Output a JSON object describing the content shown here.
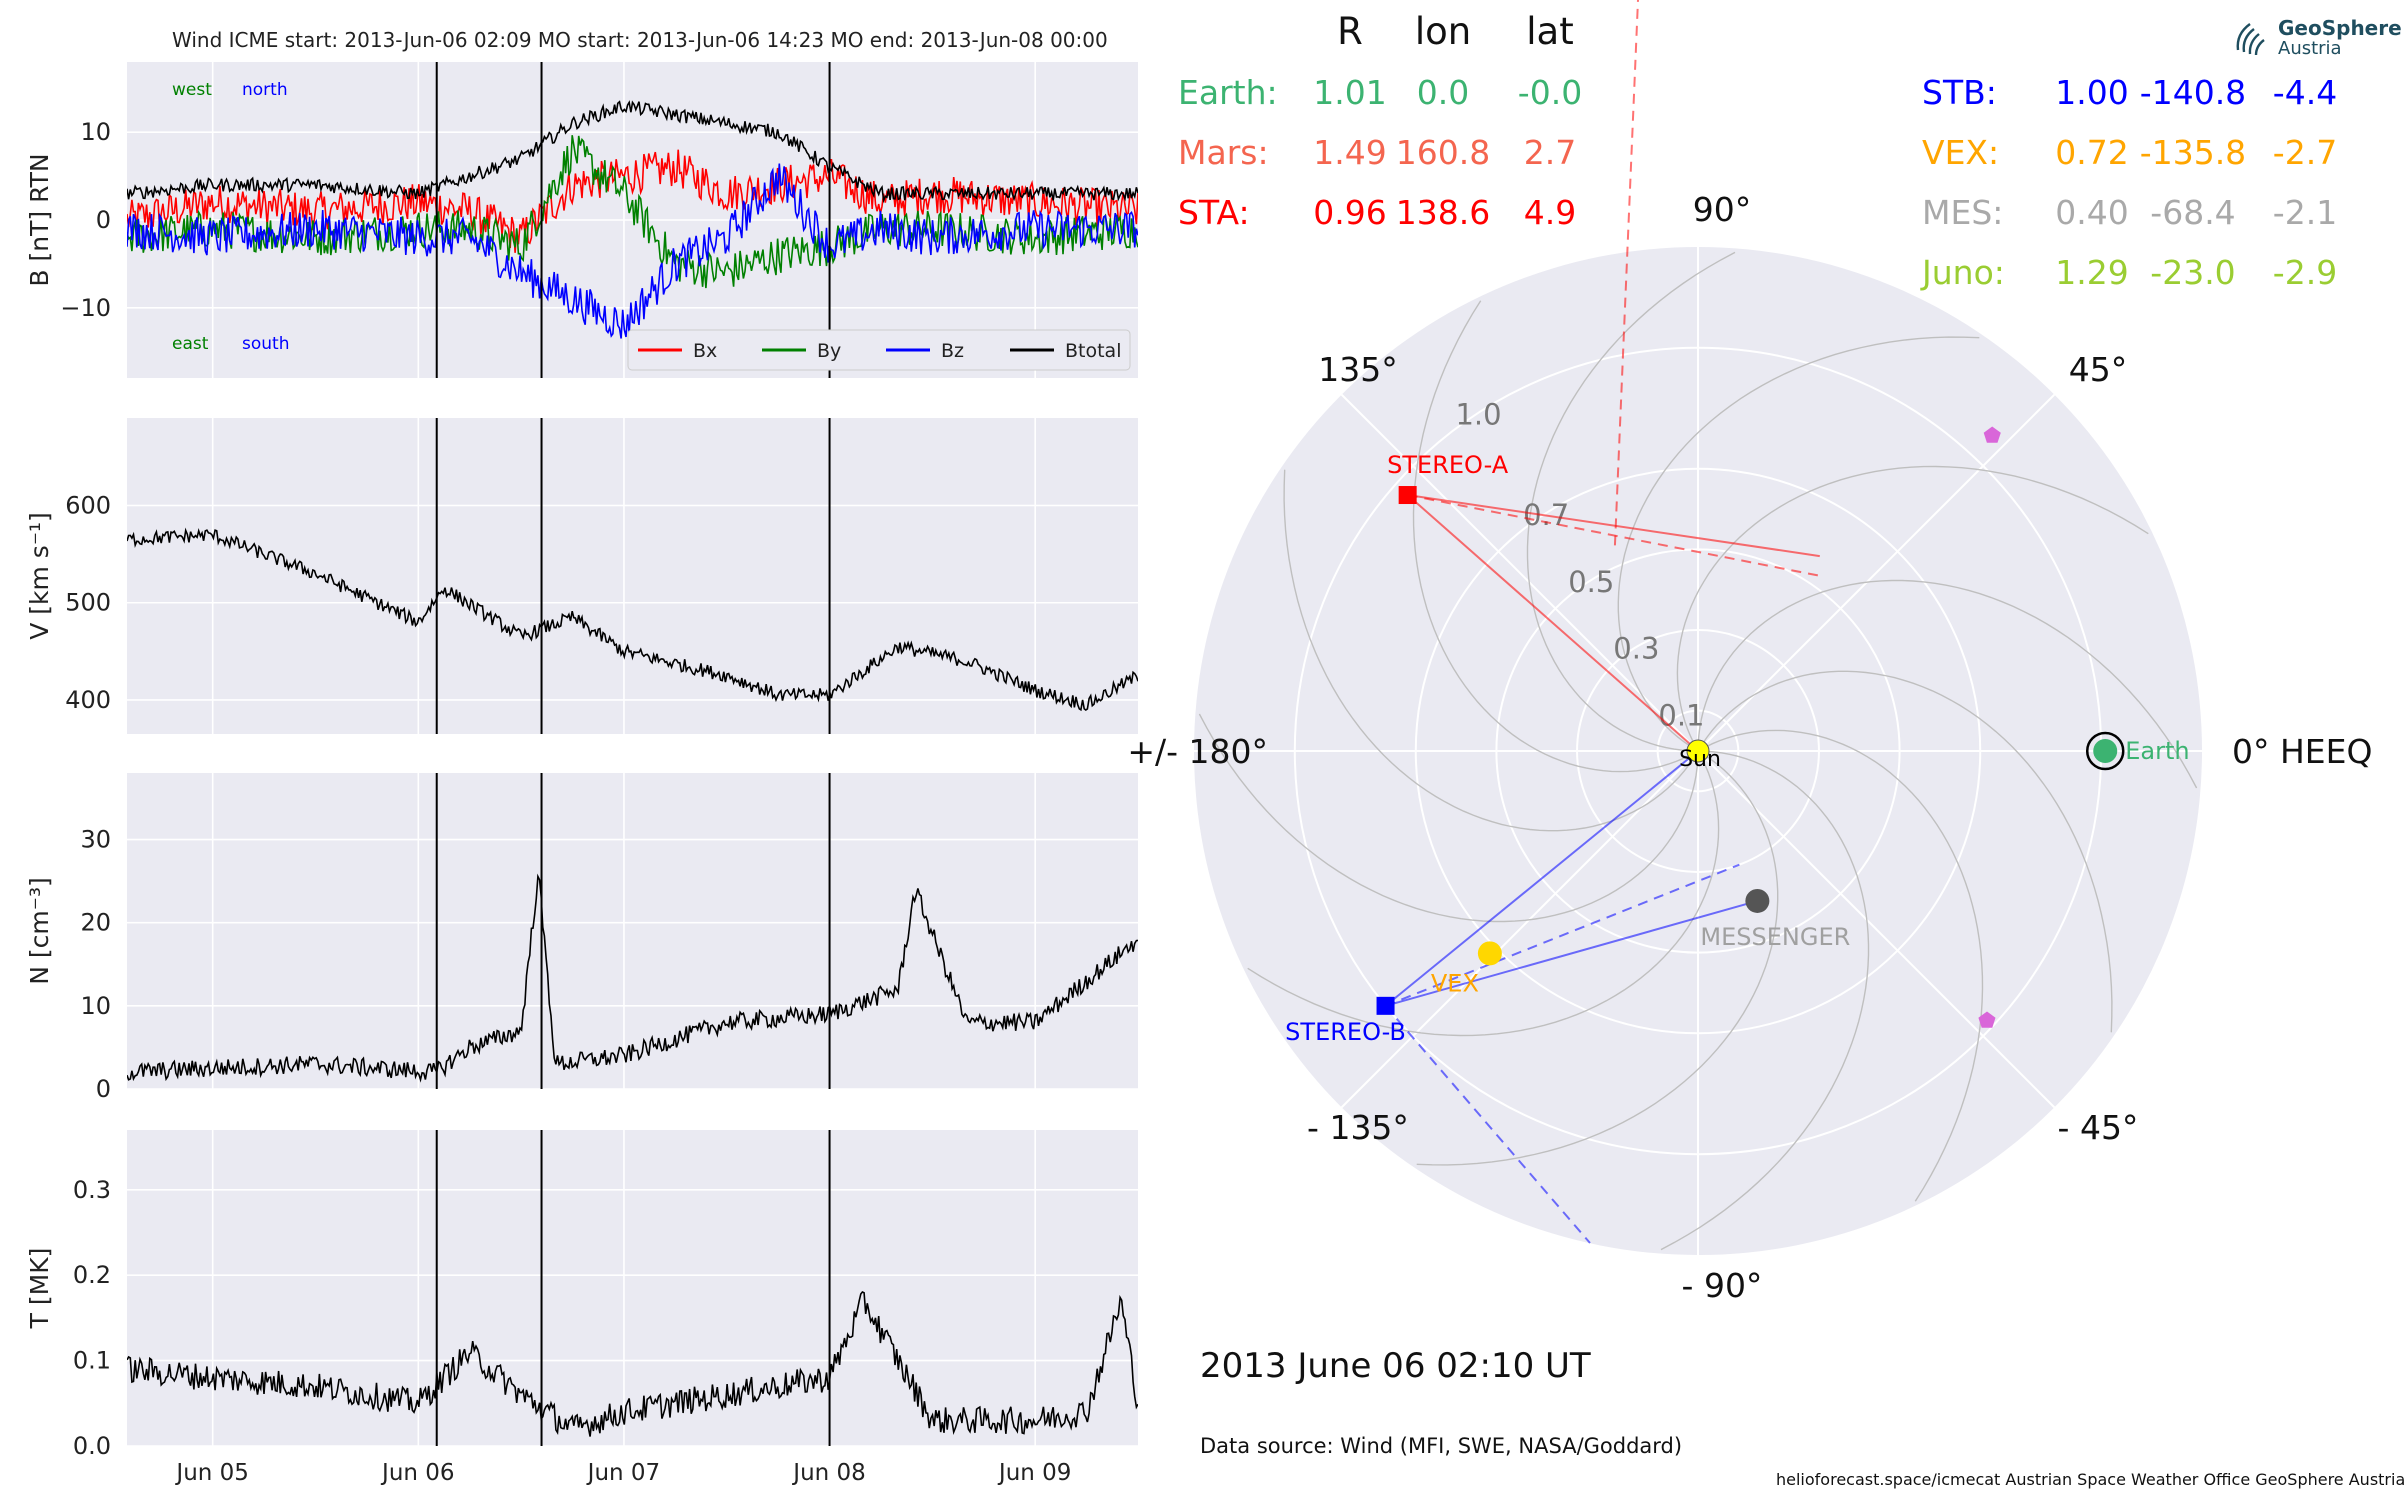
{
  "header": {
    "title": "Wind    ICME start: 2013-Jun-06 02:09   MO start: 2013-Jun-06 14:23   MO end: 2013-Jun-08 00:00"
  },
  "logo": {
    "line1": "GeoSphere",
    "line2": "Austria"
  },
  "footer": {
    "timestamp": "2013 June 06  02:10 UT",
    "data_source": "Data source: Wind (MFI, SWE, NASA/Goddard)",
    "credits": "helioforecast.space/icmecat   Austrian Space Weather Office   GeoSphere Austria"
  },
  "colors": {
    "panel_bg": "#eaeaf2",
    "grid": "#ffffff",
    "bx": "#ff0000",
    "by": "#008000",
    "bz": "#0000ff",
    "btotal": "#000000",
    "earth": "#3cb371",
    "mars": "#f4654f",
    "sta": "#ff0000",
    "stb": "#0000ff",
    "vex": "#ffa500",
    "mes": "#a9a9a9",
    "juno": "#9acd32",
    "sun": "#ffff00",
    "psp": "#d966d9"
  },
  "chart_data": [
    {
      "type": "line",
      "title": "",
      "ylabel": "B [nT] RTN",
      "ylim": [
        -18,
        18
      ],
      "yticks": [
        10,
        0,
        -10
      ],
      "ytick_labels": [
        "10",
        "0",
        "−10"
      ],
      "xlim": [
        "2013-06-04T14:00",
        "2013-06-09T12:00"
      ],
      "xticks": [
        "Jun 05",
        "Jun 06",
        "Jun 07",
        "Jun 08",
        "Jun 09"
      ],
      "xtick_times": [
        "2013-06-05T00:00",
        "2013-06-06T00:00",
        "2013-06-07T00:00",
        "2013-06-08T00:00",
        "2013-06-09T00:00"
      ],
      "event_lines": [
        "2013-06-06T02:09",
        "2013-06-06T14:23",
        "2013-06-08T00:00"
      ],
      "annotations": [
        "west",
        "north",
        "east",
        "south"
      ],
      "legend_position": "lower-right",
      "x_times": [
        "2013-06-04T14:00",
        "2013-06-05T00:00",
        "2013-06-05T12:00",
        "2013-06-06T00:00",
        "2013-06-06T06:00",
        "2013-06-06T12:00",
        "2013-06-06T18:00",
        "2013-06-07T00:00",
        "2013-06-07T06:00",
        "2013-06-07T12:00",
        "2013-06-07T18:00",
        "2013-06-08T00:00",
        "2013-06-08T06:00",
        "2013-06-08T12:00",
        "2013-06-09T00:00",
        "2013-06-09T12:00"
      ],
      "series": [
        {
          "name": "Bx",
          "values": [
            0,
            2,
            1,
            2,
            1,
            -2,
            4,
            5,
            6,
            3,
            4,
            5,
            2,
            3,
            2,
            1
          ]
        },
        {
          "name": "By",
          "values": [
            -2,
            -1,
            -2,
            -1,
            -1,
            -3,
            8,
            3,
            -5,
            -6,
            -4,
            -3,
            -1,
            -1,
            -2,
            -1
          ]
        },
        {
          "name": "Bz",
          "values": [
            -1,
            -2,
            -1,
            -2,
            -2,
            -6,
            -9,
            -12,
            -5,
            -2,
            5,
            -3,
            -1,
            -2,
            -1,
            -1
          ]
        },
        {
          "name": "Btotal",
          "values": [
            3,
            4,
            4,
            3,
            5,
            7,
            11,
            13,
            12,
            11,
            10,
            6,
            3,
            3,
            3,
            3
          ]
        }
      ]
    },
    {
      "type": "line",
      "title": "",
      "ylabel": "V [km s⁻¹]",
      "ylim": [
        365,
        690
      ],
      "yticks": [
        600,
        500,
        400
      ],
      "ytick_labels": [
        "600",
        "500",
        "400"
      ],
      "xlim": [
        "2013-06-04T14:00",
        "2013-06-09T12:00"
      ],
      "xticks": [
        "Jun 05",
        "Jun 06",
        "Jun 07",
        "Jun 08",
        "Jun 09"
      ],
      "xtick_times": [
        "2013-06-05T00:00",
        "2013-06-06T00:00",
        "2013-06-07T00:00",
        "2013-06-08T00:00",
        "2013-06-09T00:00"
      ],
      "event_lines": [
        "2013-06-06T02:09",
        "2013-06-06T14:23",
        "2013-06-08T00:00"
      ],
      "x_times": [
        "2013-06-04T14:00",
        "2013-06-05T00:00",
        "2013-06-05T12:00",
        "2013-06-06T00:00",
        "2013-06-06T03:00",
        "2013-06-06T12:00",
        "2013-06-06T18:00",
        "2013-06-07T00:00",
        "2013-06-07T12:00",
        "2013-06-07T18:00",
        "2013-06-08T00:00",
        "2013-06-08T08:00",
        "2013-06-08T16:00",
        "2013-06-09T00:00",
        "2013-06-09T06:00",
        "2013-06-09T12:00"
      ],
      "series": [
        {
          "name": "",
          "values": [
            565,
            570,
            530,
            480,
            515,
            465,
            485,
            450,
            425,
            405,
            405,
            455,
            440,
            410,
            395,
            425
          ]
        }
      ]
    },
    {
      "type": "line",
      "title": "",
      "ylabel": "N [cm⁻³]",
      "ylim": [
        0,
        38
      ],
      "yticks": [
        30,
        20,
        10,
        0
      ],
      "ytick_labels": [
        "30",
        "20",
        "10",
        "0"
      ],
      "xlim": [
        "2013-06-04T14:00",
        "2013-06-09T12:00"
      ],
      "xticks": [
        "Jun 05",
        "Jun 06",
        "Jun 07",
        "Jun 08",
        "Jun 09"
      ],
      "xtick_times": [
        "2013-06-05T00:00",
        "2013-06-06T00:00",
        "2013-06-07T00:00",
        "2013-06-08T00:00",
        "2013-06-09T00:00"
      ],
      "event_lines": [
        "2013-06-06T02:09",
        "2013-06-06T14:23",
        "2013-06-08T00:00"
      ],
      "x_times": [
        "2013-06-04T14:00",
        "2013-06-05T00:00",
        "2013-06-05T12:00",
        "2013-06-06T02:00",
        "2013-06-06T06:00",
        "2013-06-06T12:00",
        "2013-06-06T14:00",
        "2013-06-06T16:00",
        "2013-06-07T00:00",
        "2013-06-07T12:00",
        "2013-06-08T00:00",
        "2013-06-08T08:00",
        "2013-06-08T10:00",
        "2013-06-08T16:00",
        "2013-06-09T00:00",
        "2013-06-09T12:00"
      ],
      "series": [
        {
          "name": "",
          "values": [
            2,
            2.5,
            3,
            2,
            5,
            7,
            26,
            3,
            4,
            8,
            9,
            12,
            24,
            8,
            8,
            18
          ]
        }
      ]
    },
    {
      "type": "line",
      "title": "",
      "ylabel": "T [MK]",
      "ylim": [
        0,
        0.37
      ],
      "yticks": [
        0.3,
        0.2,
        0.1,
        0.0
      ],
      "ytick_labels": [
        "0.3",
        "0.2",
        "0.1",
        "0.0"
      ],
      "xlim": [
        "2013-06-04T14:00",
        "2013-06-09T12:00"
      ],
      "xticks": [
        "Jun 05",
        "Jun 06",
        "Jun 07",
        "Jun 08",
        "Jun 09"
      ],
      "xtick_times": [
        "2013-06-05T00:00",
        "2013-06-06T00:00",
        "2013-06-07T00:00",
        "2013-06-08T00:00",
        "2013-06-09T00:00"
      ],
      "event_lines": [
        "2013-06-06T02:09",
        "2013-06-06T14:23",
        "2013-06-08T00:00"
      ],
      "x_times": [
        "2013-06-04T14:00",
        "2013-06-05T00:00",
        "2013-06-05T12:00",
        "2013-06-06T00:00",
        "2013-06-06T06:00",
        "2013-06-06T12:00",
        "2013-06-06T18:00",
        "2013-06-07T00:00",
        "2013-06-07T12:00",
        "2013-06-08T00:00",
        "2013-06-08T04:00",
        "2013-06-08T12:00",
        "2013-06-09T00:00",
        "2013-06-09T06:00",
        "2013-06-09T10:00",
        "2013-06-09T12:00"
      ],
      "series": [
        {
          "name": "",
          "values": [
            0.09,
            0.08,
            0.07,
            0.05,
            0.11,
            0.06,
            0.02,
            0.04,
            0.06,
            0.08,
            0.17,
            0.03,
            0.03,
            0.04,
            0.17,
            0.05
          ]
        }
      ]
    },
    {
      "type": "scatter",
      "title": "",
      "coordinate_system": "HEEQ",
      "theta_ticks": [
        0,
        45,
        90,
        135,
        180,
        -135,
        -90,
        -45
      ],
      "theta_tick_labels": [
        "0° HEEQ",
        "45°",
        "90°",
        "135°",
        "+/- 180°",
        "- 135°",
        "- 90°",
        "- 45°"
      ],
      "r_ticks": [
        0.1,
        0.3,
        0.5,
        0.7,
        1.0
      ],
      "r_tick_labels": [
        "0.1",
        "0.3",
        "0.5",
        "0.7",
        "1.0"
      ],
      "r_max": 1.25,
      "table_headers": [
        "R",
        "lon",
        "lat"
      ],
      "table_left": [
        {
          "label": "Earth:",
          "r": "1.01",
          "lon": "0.0",
          "lat": "-0.0",
          "color": "#3cb371"
        },
        {
          "label": "Mars:",
          "r": "1.49",
          "lon": "160.8",
          "lat": "2.7",
          "color": "#f4654f"
        },
        {
          "label": "STA:",
          "r": "0.96",
          "lon": "138.6",
          "lat": "4.9",
          "color": "#ff0000"
        }
      ],
      "table_right": [
        {
          "label": "STB:",
          "r": "1.00",
          "lon": "-140.8",
          "lat": "-4.4",
          "color": "#0000ff"
        },
        {
          "label": "VEX:",
          "r": "0.72",
          "lon": "-135.8",
          "lat": "-2.7",
          "color": "#ffa500"
        },
        {
          "label": "MES:",
          "r": "0.40",
          "lon": "-68.4",
          "lat": "-2.1",
          "color": "#a9a9a9"
        },
        {
          "label": "Juno:",
          "r": "1.29",
          "lon": "-23.0",
          "lat": "-2.9",
          "color": "#9acd32"
        }
      ],
      "bodies": [
        {
          "name": "Sun",
          "label": "Sun",
          "r": 0.0,
          "lon": 0,
          "color": "#ffff00",
          "marker": "circle"
        },
        {
          "name": "Earth",
          "label": "Earth",
          "r": 1.01,
          "lon": 0.0,
          "color": "#3cb371",
          "marker": "circle"
        },
        {
          "name": "STEREO-A",
          "label": "STEREO-A",
          "r": 0.96,
          "lon": 138.6,
          "color": "#ff0000",
          "marker": "square"
        },
        {
          "name": "STEREO-B",
          "label": "STEREO-B",
          "r": 1.0,
          "lon": -140.8,
          "color": "#0000ff",
          "marker": "square"
        },
        {
          "name": "VEX",
          "label": "VEX",
          "r": 0.72,
          "lon": -135.8,
          "color": "#ffd700",
          "marker": "circle"
        },
        {
          "name": "MESSENGER",
          "label": "MESSENGER",
          "r": 0.4,
          "lon": -68.4,
          "color": "#555555",
          "marker": "circle"
        },
        {
          "name": "pentagon-upper",
          "label": "",
          "r": 1.07,
          "lon": 47,
          "color": "#d966d9",
          "marker": "pentagon"
        },
        {
          "name": "pentagon-lower",
          "label": "",
          "r": 0.98,
          "lon": -43,
          "color": "#d966d9",
          "marker": "pentagon"
        }
      ]
    }
  ]
}
